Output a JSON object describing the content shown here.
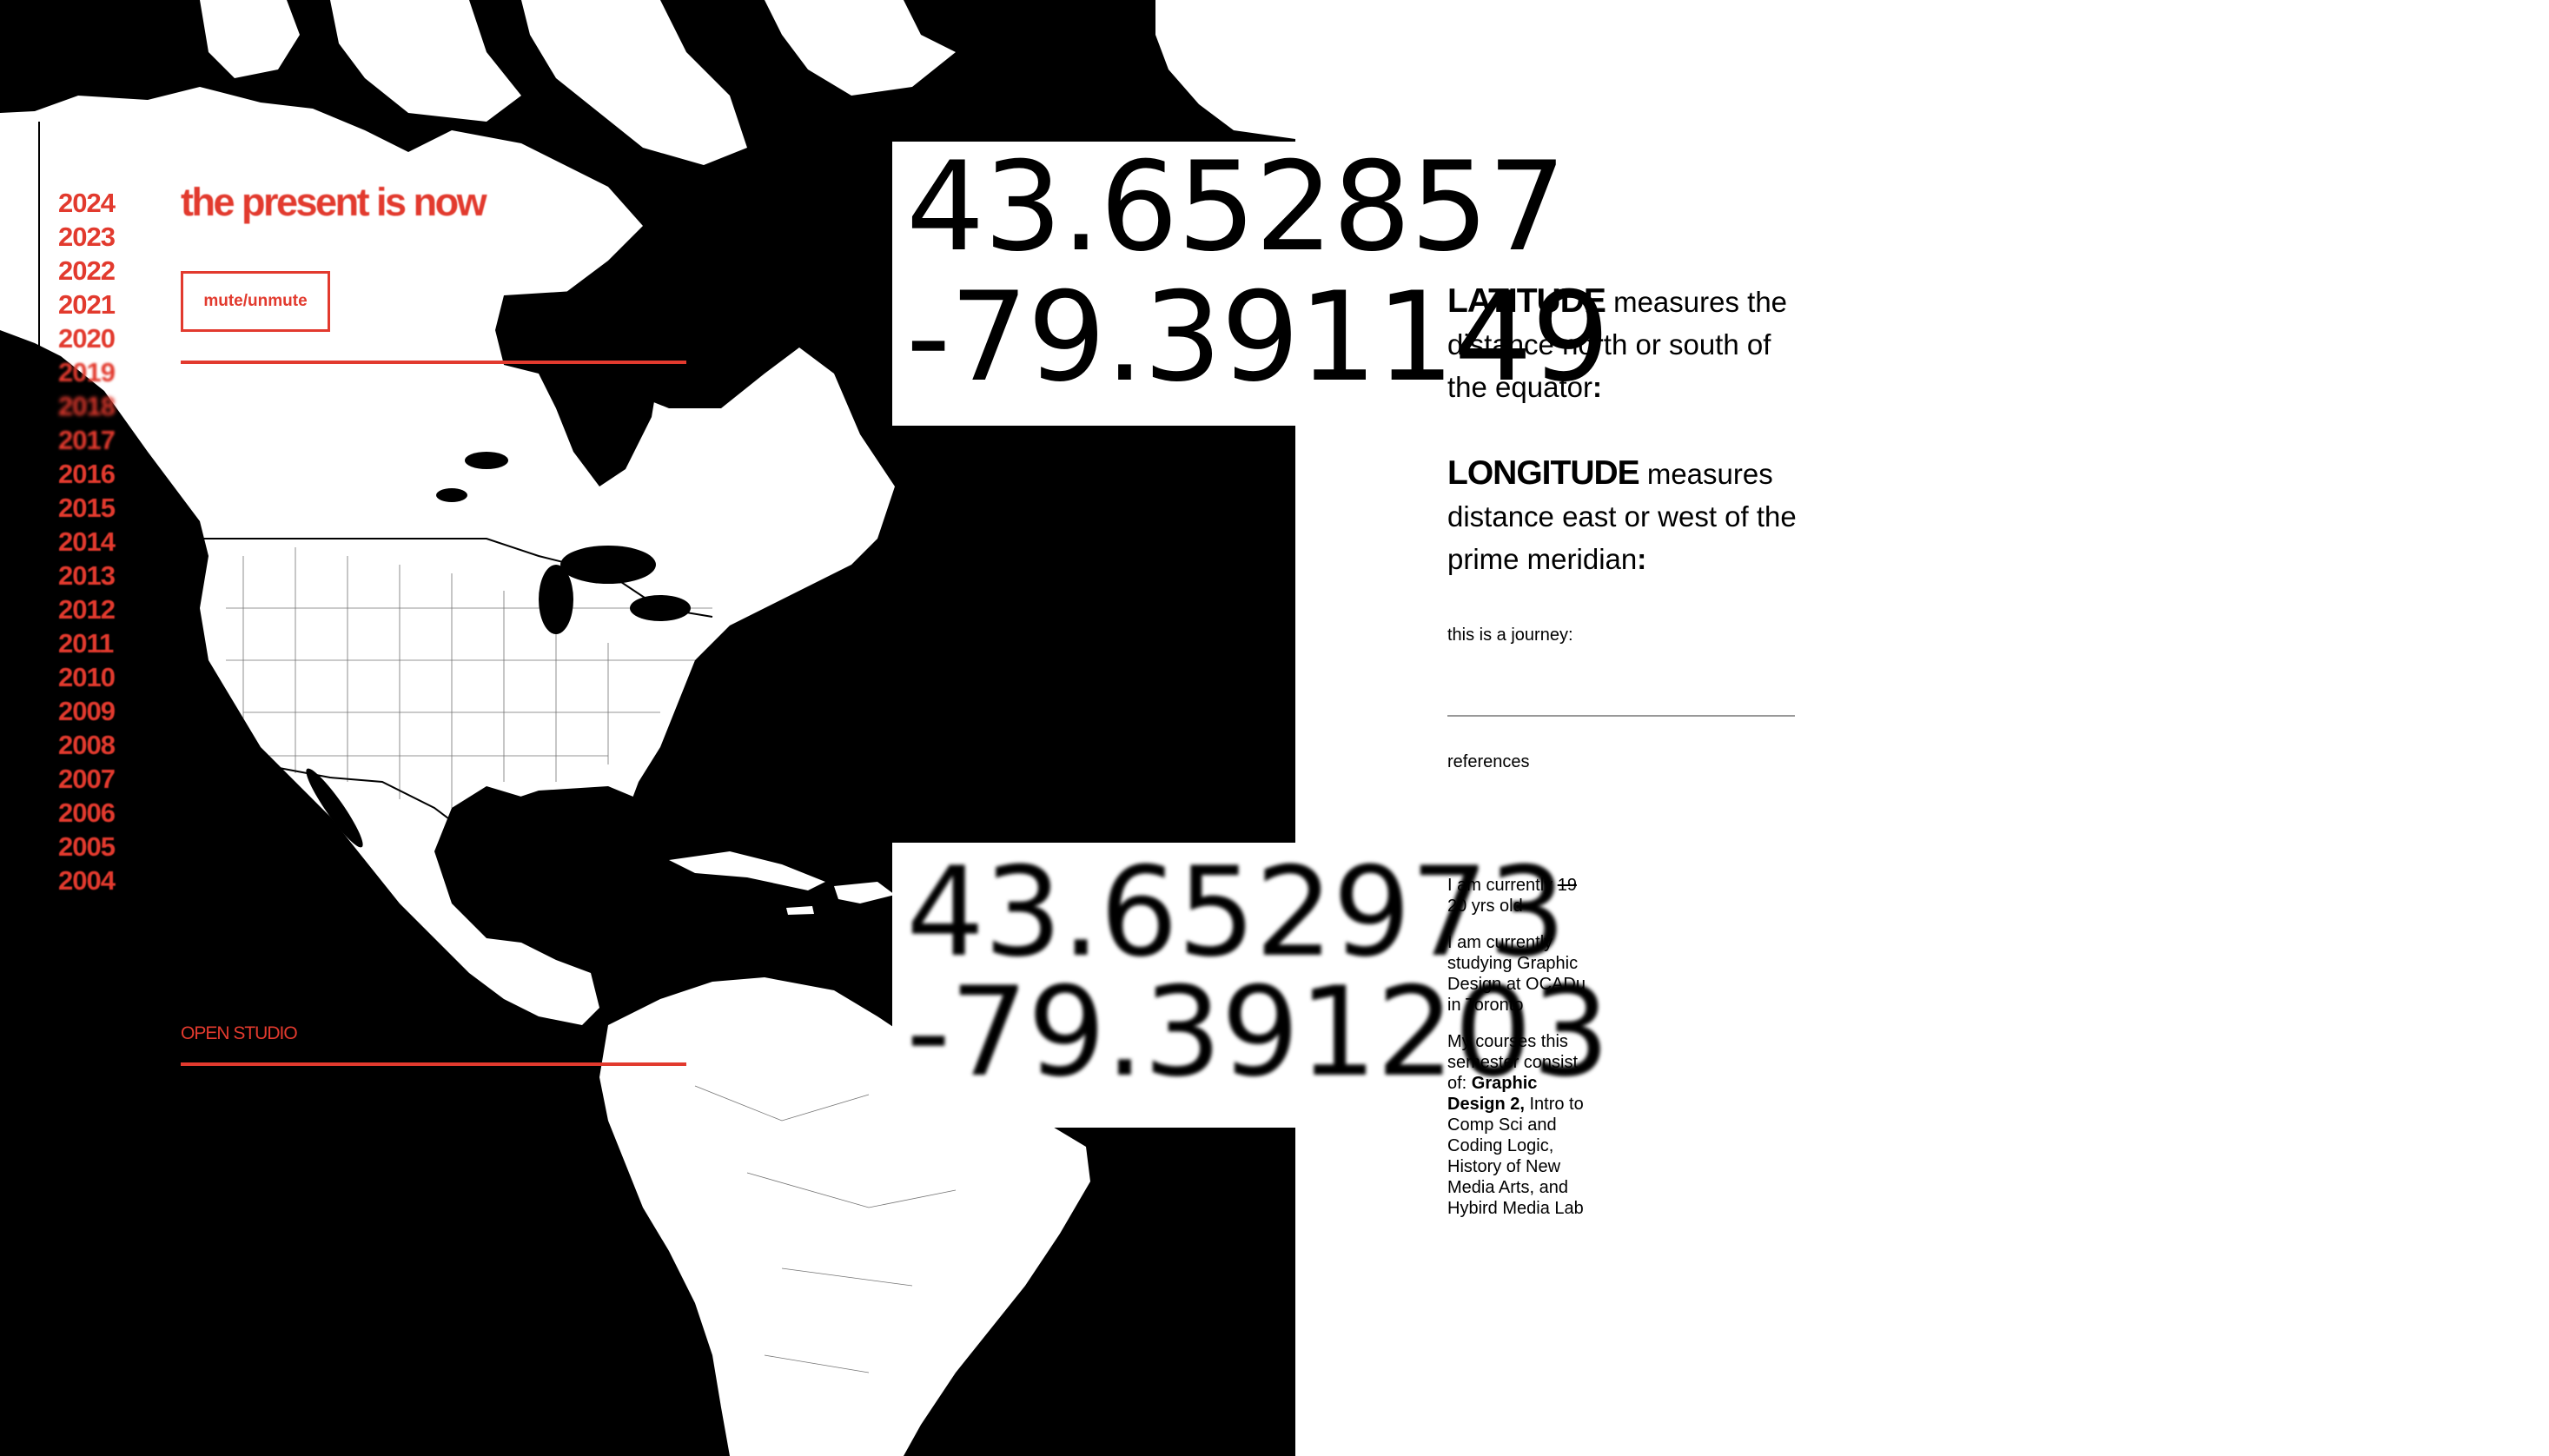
{
  "colors": {
    "accent": "#e23a2e",
    "map_water": "#000000",
    "map_land": "#ffffff",
    "page_bg": "#ffffff"
  },
  "years": [
    "2024",
    "2023",
    "2022",
    "2021",
    "2020",
    "2019",
    "2018",
    "2017",
    "2016",
    "2015",
    "2014",
    "2013",
    "2012",
    "2011",
    "2010",
    "2009",
    "2008",
    "2007",
    "2006",
    "2005",
    "2004"
  ],
  "header": {
    "title": "the present is now",
    "mute_label": "mute/unmute"
  },
  "nav": {
    "open_studio": "OPEN STUDIO"
  },
  "coordinates": {
    "first": {
      "lat": "43.652857",
      "lon": "-79.391149"
    },
    "second": {
      "lat": "43.652973",
      "lon": "-79.391203"
    }
  },
  "definitions": {
    "latitude": {
      "term": "LATITUDE",
      "text": " measures the distance north or south of the equator",
      "colon": ":"
    },
    "longitude": {
      "term": "LONGITUDE",
      "text": " measures distance east or west of the prime meridian",
      "colon": ":"
    }
  },
  "journey": {
    "label": "this is a journey:",
    "references": "references"
  },
  "bio": {
    "age_prefix": "I am currently ",
    "age_struck": "19",
    "age_value": " 20 yrs old",
    "study": "I am currently studying Graphic Design at OCADu in Toronto",
    "courses_intro": "My courses this semester consist of: ",
    "courses_bold": "Graphic Design 2,",
    "courses_rest": " Intro to Comp Sci and Coding Logic, History of New Media Arts, and Hybird Media Lab"
  }
}
